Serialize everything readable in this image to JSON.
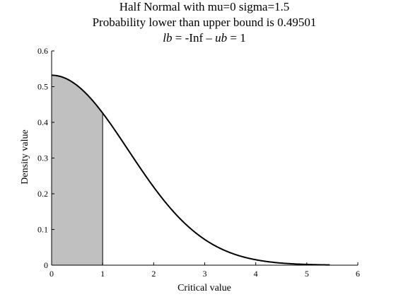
{
  "chart_data": {
    "type": "area",
    "title_lines": [
      "Half Normal with mu=0 sigma=1.5",
      "Probability lower than upper bound is 0.49501"
    ],
    "bounds_line": {
      "lb_symbol": "lb",
      "lb_text": " = -Inf – ",
      "ub_symbol": "ub",
      "ub_text": " = 1"
    },
    "xlabel": "Critical value",
    "ylabel": "Density value",
    "xlim": [
      0,
      6
    ],
    "ylim": [
      0,
      0.6
    ],
    "xticks": [
      "0",
      "1",
      "2",
      "3",
      "4",
      "5",
      "6"
    ],
    "yticks": [
      "0",
      "0.1",
      "0.2",
      "0.3",
      "0.4",
      "0.5",
      "0.6"
    ],
    "grid": false,
    "distribution": {
      "name": "Half Normal",
      "mu": 0,
      "sigma": 1.5
    },
    "shaded_region": {
      "lb": "-Inf",
      "ub": 1,
      "probability": 0.49501,
      "color": "#c0c0c0"
    },
    "series": [
      {
        "x": [
          0,
          0.25,
          0.5,
          0.75,
          1.0,
          1.25,
          1.5,
          1.75,
          2.0,
          2.25,
          2.5,
          2.75,
          3.0,
          3.25,
          3.5,
          3.75,
          4.0,
          4.25,
          4.5,
          4.75,
          5.0,
          5.25,
          5.45
        ],
        "y": [
          0.532,
          0.524,
          0.503,
          0.469,
          0.427,
          0.377,
          0.323,
          0.269,
          0.216,
          0.169,
          0.133,
          0.1,
          0.072,
          0.049,
          0.035,
          0.023,
          0.014,
          0.009,
          0.006,
          0.004,
          0.002,
          0.001,
          0.0
        ]
      }
    ],
    "line_color": "#000000"
  }
}
